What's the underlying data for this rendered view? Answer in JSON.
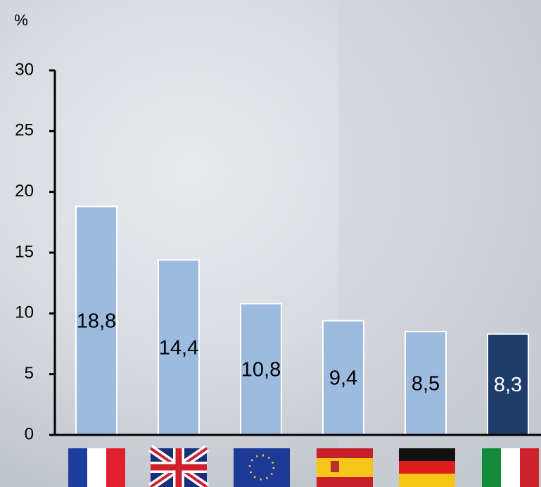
{
  "chart_data": {
    "type": "bar",
    "y_label": "%",
    "categories": [
      null,
      null,
      null,
      null,
      null,
      null
    ],
    "values": [
      18.8,
      14.4,
      10.8,
      9.4,
      8.5,
      8.3
    ],
    "value_labels": [
      "18,8",
      "14,4",
      "10,8",
      "9,4",
      "8,5",
      "8,3"
    ],
    "colors": [
      "#9dbadf",
      "#9dbadf",
      "#9dbadf",
      "#9dbadf",
      "#9dbadf",
      "#1f3d6b"
    ],
    "ylim": [
      0,
      30
    ],
    "yticks": [
      0,
      5,
      10,
      15,
      20,
      25,
      30
    ]
  }
}
